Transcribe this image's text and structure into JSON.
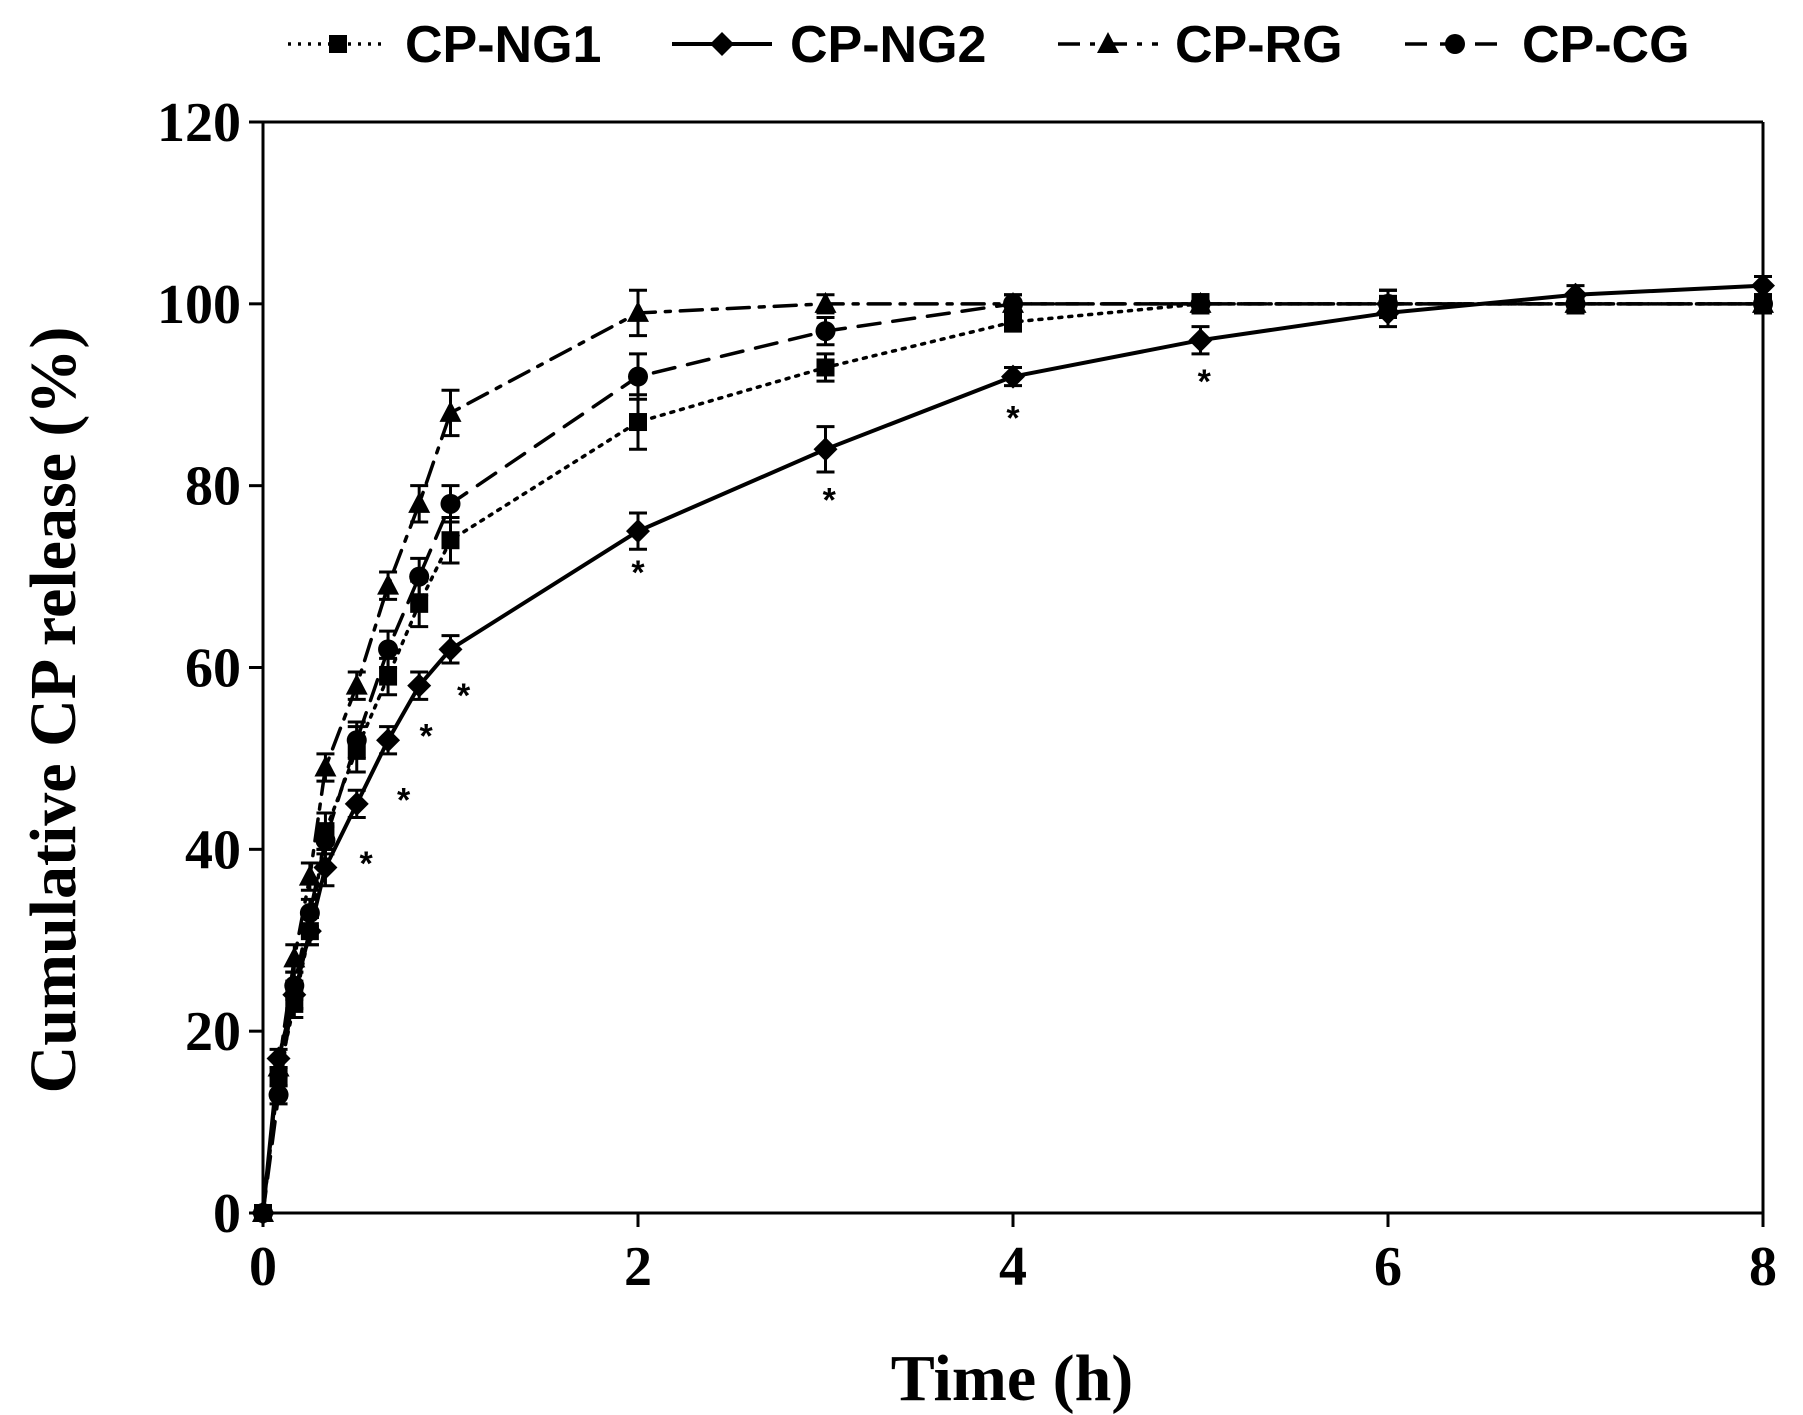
{
  "chart_data": {
    "type": "line",
    "title": "",
    "xlabel": "Time (h)",
    "ylabel": "Cumulative CP release (%)",
    "xlim": [
      0,
      8
    ],
    "ylim": [
      0,
      120
    ],
    "xticks": [
      "0",
      "2",
      "4",
      "6",
      "8"
    ],
    "yticks": [
      "0",
      "20",
      "40",
      "60",
      "80",
      "100",
      "120"
    ],
    "legend_position": "top",
    "series": [
      {
        "name": "CP-NG1",
        "line_style": "dotted",
        "marker": "square",
        "x": [
          0,
          0.083,
          0.167,
          0.25,
          0.333,
          0.5,
          0.667,
          0.833,
          1,
          2,
          3,
          4,
          5,
          6,
          7,
          8
        ],
        "y": [
          0,
          15,
          23,
          31,
          42,
          51,
          59,
          67,
          74,
          87,
          93,
          98,
          100,
          100,
          100,
          100
        ],
        "err": [
          0,
          1,
          1.5,
          1.5,
          2,
          2.5,
          2,
          2.5,
          2.5,
          3,
          1.5,
          1,
          1,
          1.5,
          1,
          1
        ]
      },
      {
        "name": "CP-NG2",
        "line_style": "solid",
        "marker": "diamond",
        "x": [
          0,
          0.083,
          0.167,
          0.25,
          0.333,
          0.5,
          0.667,
          0.833,
          1,
          2,
          3,
          4,
          5,
          6,
          7,
          8
        ],
        "y": [
          0,
          17,
          24,
          31,
          38,
          45,
          52,
          58,
          62,
          75,
          84,
          92,
          96,
          99,
          101,
          102
        ],
        "err": [
          0,
          1,
          1.5,
          1.5,
          2,
          1.5,
          1.5,
          1.5,
          1.5,
          2,
          2.5,
          1,
          1.5,
          1.5,
          1,
          1
        ]
      },
      {
        "name": "CP-RG",
        "line_style": "dash-dot",
        "marker": "triangle",
        "x": [
          0,
          0.083,
          0.167,
          0.25,
          0.333,
          0.5,
          0.667,
          0.833,
          1,
          2,
          3,
          4,
          5,
          6,
          7,
          8
        ],
        "y": [
          0,
          16,
          28,
          37,
          49,
          58,
          69,
          78,
          88,
          99,
          100,
          100,
          100,
          100,
          100,
          100
        ],
        "err": [
          0,
          1,
          1.5,
          1.5,
          1.5,
          1.5,
          1.5,
          2,
          2.5,
          2.5,
          1,
          1,
          1,
          1.5,
          1,
          1
        ]
      },
      {
        "name": "CP-CG",
        "line_style": "dashed",
        "marker": "circle",
        "x": [
          0,
          0.083,
          0.167,
          0.25,
          0.333,
          0.5,
          0.667,
          0.833,
          1,
          2,
          3,
          4,
          5,
          6,
          7,
          8
        ],
        "y": [
          0,
          13,
          25,
          33,
          41,
          52,
          62,
          70,
          78,
          92,
          97,
          100,
          100,
          100,
          100,
          100
        ],
        "err": [
          0,
          1,
          1.5,
          1.5,
          1.5,
          2,
          2,
          2,
          2,
          2.5,
          1.5,
          1,
          1,
          1.5,
          1,
          1
        ]
      }
    ],
    "annotations": [
      {
        "text": "*",
        "x": 0.55,
        "y": 38.5
      },
      {
        "text": "*",
        "x": 0.75,
        "y": 45.5
      },
      {
        "text": "*",
        "x": 0.87,
        "y": 52.5
      },
      {
        "text": "*",
        "x": 1.07,
        "y": 57
      },
      {
        "text": "*",
        "x": 2,
        "y": 70.5
      },
      {
        "text": "*",
        "x": 3.02,
        "y": 78.5
      },
      {
        "text": "*",
        "x": 4,
        "y": 87.5
      },
      {
        "text": "*",
        "x": 5.02,
        "y": 91.5
      }
    ]
  }
}
